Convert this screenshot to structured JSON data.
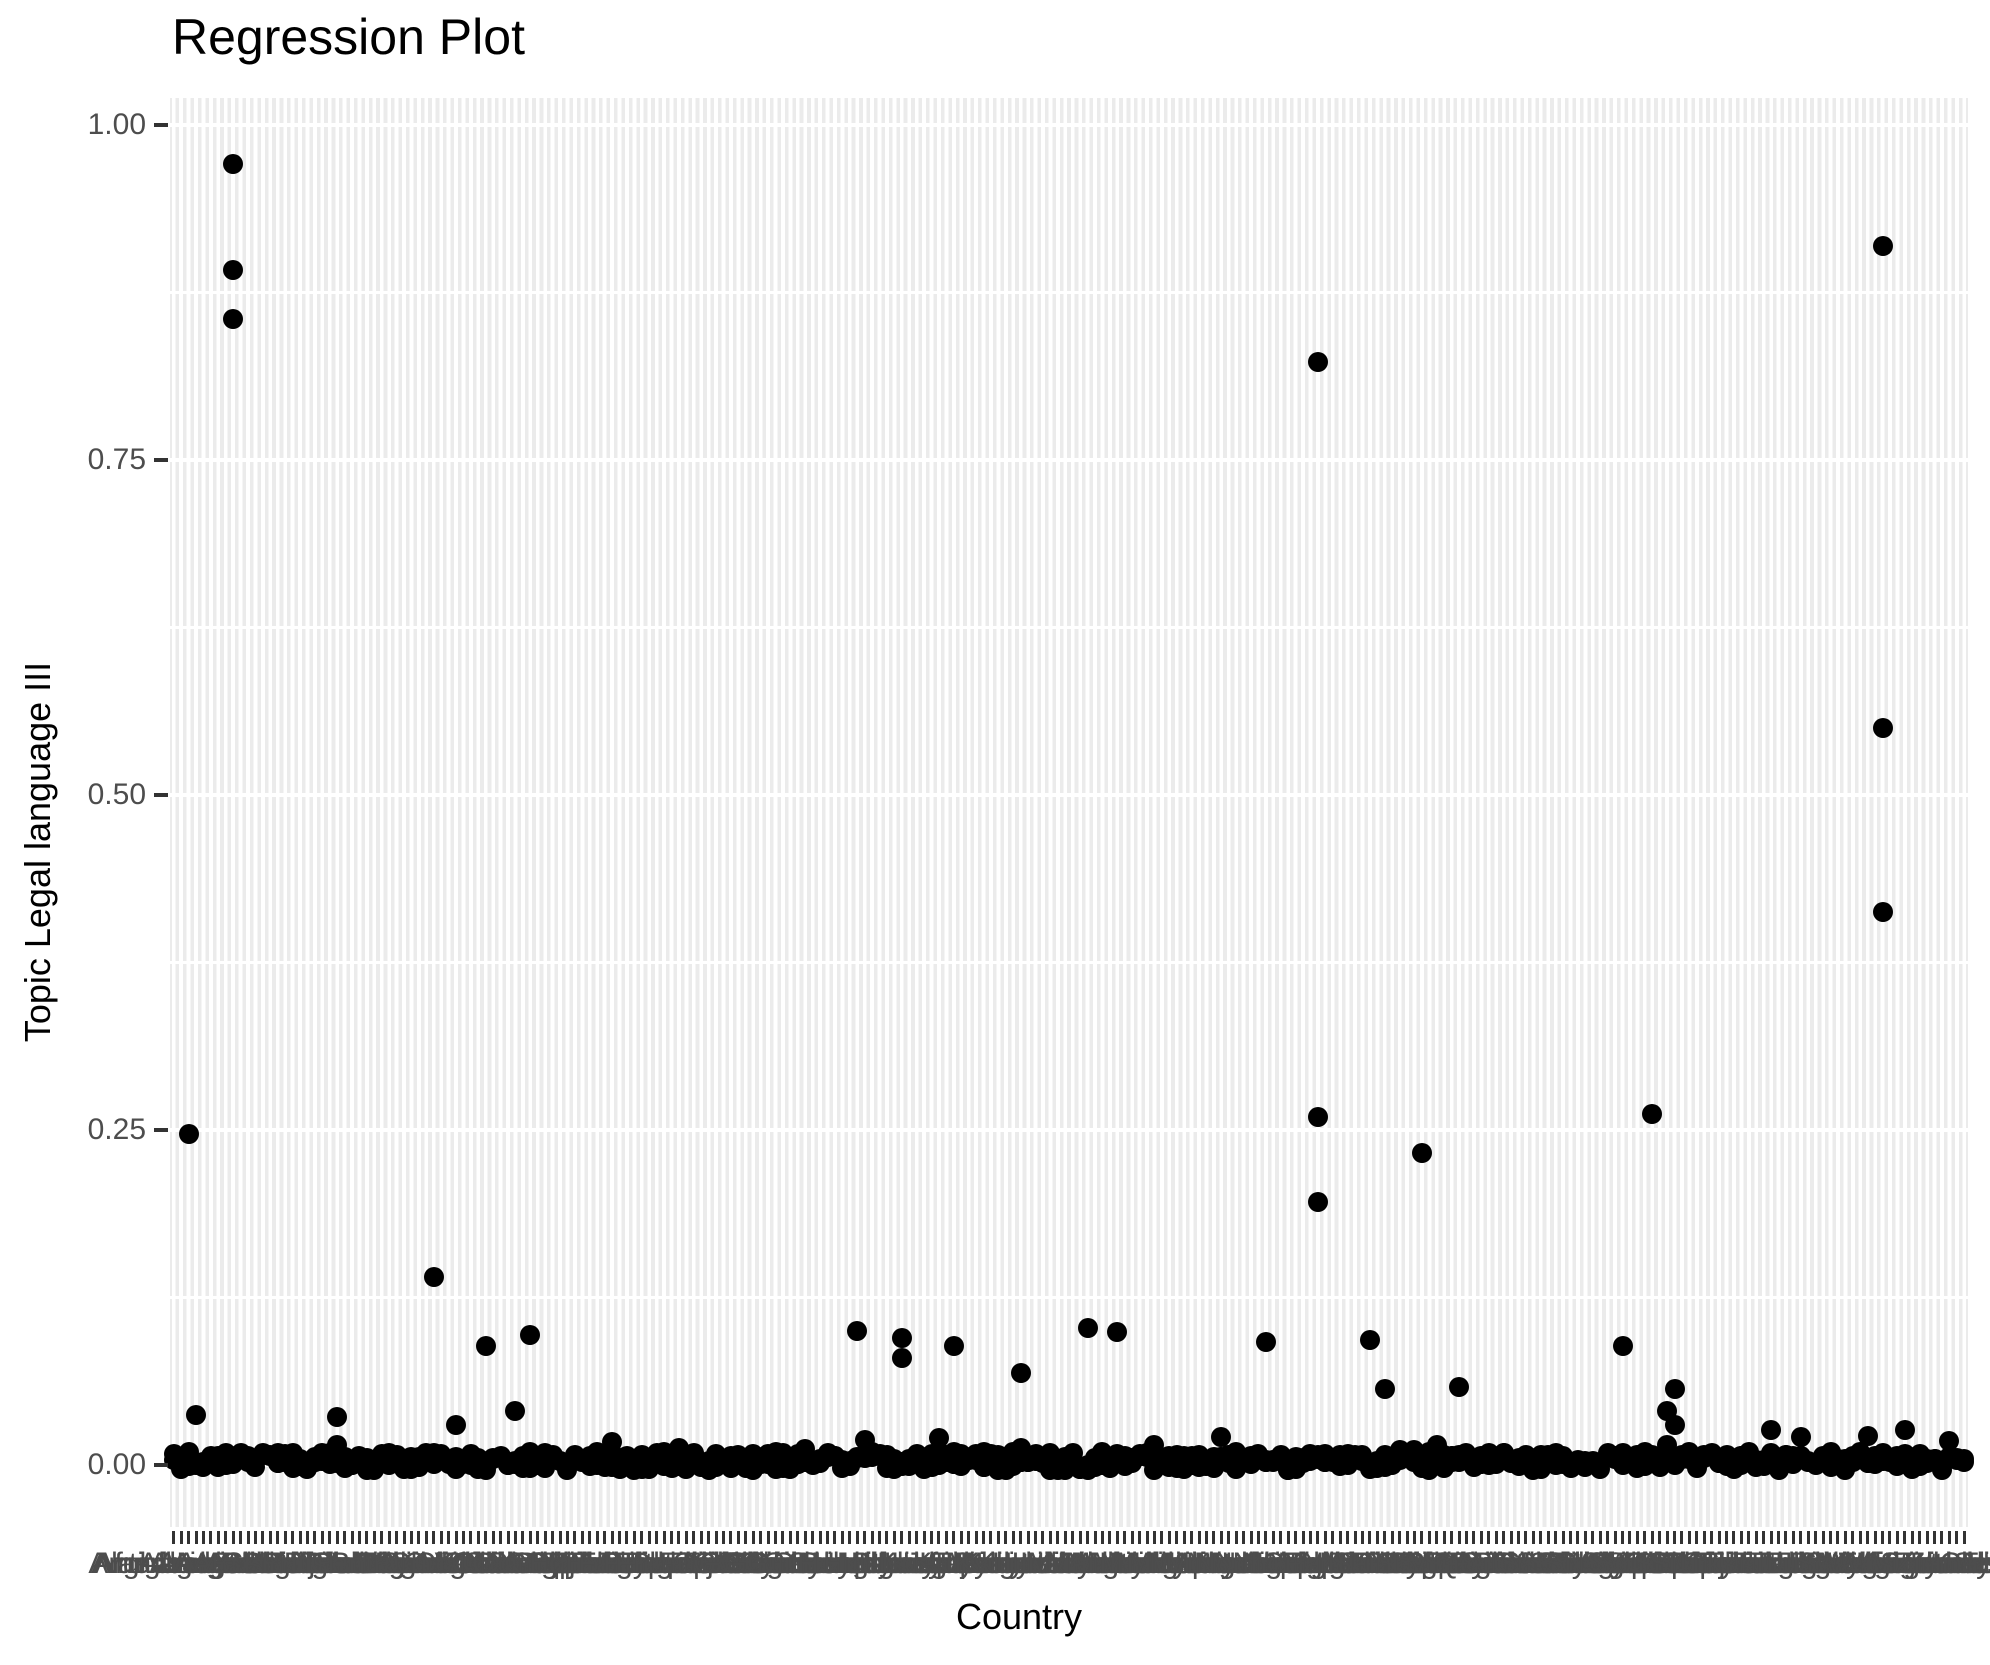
{
  "title": "Regression Plot",
  "axes": {
    "x_title": "Country",
    "y_title": "Topic Legal language III"
  },
  "colors": {
    "panel_background": "#EBEBEB",
    "gridline": "#FFFFFF",
    "point": "#000000",
    "tick_mark": "#333333",
    "tick_label": "#4D4D4D",
    "title_text": "#000000"
  },
  "chart_data": {
    "type": "scatter",
    "title": "Regression Plot",
    "xlabel": "Country",
    "ylabel": "Topic Legal language III",
    "y_axis": {
      "tick_values": [
        0.0,
        0.25,
        0.5,
        0.75,
        1.0
      ],
      "tick_labels": [
        "0.00",
        "0.25",
        "0.50",
        "0.75",
        "1.00"
      ],
      "minor_gridlines": [
        0.125,
        0.375,
        0.625,
        0.875
      ],
      "range_shown": [
        -0.046,
        1.02
      ]
    },
    "x_axis": {
      "note": "one tick per country; labels overlap into an illegible dark band, only 'Afg' of the first label is readable",
      "first_readable_label_fragment": "Afg",
      "categories": [
        "Afghanistan",
        "Aland Islands",
        "Albania",
        "Algeria",
        "American Samoa",
        "Andorra",
        "Angola",
        "Anguilla",
        "Antigua and Barbuda",
        "Argentina",
        "Armenia",
        "Aruba",
        "Australia",
        "Austria",
        "Azerbaijan",
        "Bahamas",
        "Bahrain",
        "Bangladesh",
        "Barbados",
        "Belarus",
        "Belgium",
        "Belize",
        "Benin",
        "Bermuda",
        "Bhutan",
        "Bolivia",
        "Bonaire",
        "Bosnia and Herzegovina",
        "Botswana",
        "Brazil",
        "British Virgin Islands",
        "Brunei",
        "Bulgaria",
        "Burkina Faso",
        "Burundi",
        "Cabo Verde",
        "Cambodia",
        "Cameroon",
        "Canada",
        "Cayman Islands",
        "Central African Republic",
        "Chad",
        "Chile",
        "China",
        "Christmas Island",
        "Cocos Islands",
        "Colombia",
        "Comoros",
        "Congo",
        "Cook Islands",
        "Costa Rica",
        "Croatia",
        "Cuba",
        "Curacao",
        "Cyprus",
        "Czechia",
        "Denmark",
        "Djibouti",
        "Dominica",
        "Dominican Republic",
        "DR Congo",
        "Ecuador",
        "Egypt",
        "El Salvador",
        "Equatorial Guinea",
        "Eritrea",
        "Estonia",
        "Eswatini",
        "Ethiopia",
        "Falkland Islands",
        "Faroe Islands",
        "Fiji",
        "Finland",
        "France",
        "French Guiana",
        "French Polynesia",
        "Gabon",
        "Gambia",
        "Georgia",
        "Germany",
        "Ghana",
        "Gibraltar",
        "Greece",
        "Greenland",
        "Grenada",
        "Guadeloupe",
        "Guam",
        "Guatemala",
        "Guernsey",
        "Guinea",
        "Guinea-Bissau",
        "Guyana",
        "Haiti",
        "Honduras",
        "Hong Kong",
        "Hungary",
        "Iceland",
        "India",
        "Indonesia",
        "Iran",
        "Iraq",
        "Ireland",
        "Isle of Man",
        "Israel",
        "Italy",
        "Ivory Coast",
        "Jamaica",
        "Japan",
        "Jersey",
        "Jordan",
        "Kazakhstan",
        "Kenya",
        "Kiribati",
        "Kosovo",
        "Kuwait",
        "Kyrgyzstan",
        "Laos",
        "Latvia",
        "Lebanon",
        "Lesotho",
        "Liberia",
        "Libya",
        "Liechtenstein",
        "Lithuania",
        "Luxembourg",
        "Macao",
        "Madagascar",
        "Malawi",
        "Malaysia",
        "Maldives",
        "Mali",
        "Malta",
        "Marshall Islands",
        "Martinique",
        "Mauritania",
        "Mauritius",
        "Mayotte",
        "Mexico",
        "Micronesia",
        "Moldova",
        "Monaco",
        "Mongolia",
        "Montenegro",
        "Montserrat",
        "Morocco",
        "Mozambique",
        "Myanmar",
        "Namibia",
        "Nauru",
        "Nepal",
        "Netherlands",
        "New Caledonia",
        "New Zealand",
        "Nicaragua",
        "Niger",
        "Nigeria",
        "Niue",
        "Norfolk Island",
        "North Korea",
        "North Macedonia",
        "Northern Mariana Islands",
        "Norway",
        "Oman",
        "Pakistan",
        "Palau",
        "Palestine",
        "Panama",
        "Papua New Guinea",
        "Paraguay",
        "Peru",
        "Philippines",
        "Pitcairn",
        "Poland",
        "Portugal",
        "Puerto Rico",
        "Qatar",
        "Reunion",
        "Romania",
        "Russia",
        "Rwanda",
        "Saint Barthelemy",
        "Saint Helena",
        "Saint Kitts and Nevis",
        "Saint Lucia",
        "Saint Martin",
        "Saint Pierre and Miquelon",
        "Saint Vincent and the Grenadines",
        "Samoa",
        "San Marino",
        "Sao Tome and Principe",
        "Saudi Arabia",
        "Senegal",
        "Serbia",
        "Seychelles",
        "Sierra Leone",
        "Singapore",
        "Sint Maarten",
        "Slovakia",
        "Slovenia",
        "Solomon Islands",
        "Somalia",
        "South Africa",
        "South Korea",
        "South Sudan",
        "Spain",
        "Sri Lanka",
        "Sudan",
        "Suriname",
        "Sweden",
        "Switzerland",
        "Syria",
        "Taiwan",
        "Tajikistan",
        "Tanzania",
        "Thailand",
        "Timor-Leste",
        "Togo",
        "Tokelau",
        "Tonga",
        "Trinidad and Tobago",
        "Tunisia",
        "Turkey",
        "Turkmenistan",
        "Turks and Caicos Islands",
        "Tuvalu",
        "Uganda",
        "Ukraine",
        "United Arab Emirates",
        "United Kingdom",
        "United States",
        "Uruguay",
        "US Virgin Islands",
        "Uzbekistan",
        "Vanuatu",
        "Vatican City",
        "Venezuela",
        "Vietnam",
        "Wallis and Futuna",
        "Western Sahara",
        "Yemen",
        "Zambia",
        "Zimbabwe"
      ]
    },
    "outlier_points": [
      [
        2,
        0.247
      ],
      [
        3,
        0.037
      ],
      [
        8,
        0.971
      ],
      [
        8,
        0.892
      ],
      [
        8,
        0.855
      ],
      [
        14,
        0.009
      ],
      [
        22,
        0.036
      ],
      [
        22,
        0.015
      ],
      [
        35,
        0.14
      ],
      [
        38,
        0.03
      ],
      [
        42,
        0.089
      ],
      [
        46,
        0.04
      ],
      [
        48,
        0.097
      ],
      [
        59,
        0.017
      ],
      [
        68,
        0.013
      ],
      [
        81,
        0.01
      ],
      [
        85,
        0.012
      ],
      [
        92,
        0.1
      ],
      [
        93,
        0.019
      ],
      [
        98,
        0.095
      ],
      [
        98,
        0.08
      ],
      [
        103,
        0.02
      ],
      [
        105,
        0.089
      ],
      [
        114,
        0.069
      ],
      [
        114,
        0.013
      ],
      [
        123,
        0.102
      ],
      [
        127,
        0.099
      ],
      [
        132,
        0.015
      ],
      [
        141,
        0.021
      ],
      [
        147,
        0.092
      ],
      [
        154,
        0.823
      ],
      [
        154,
        0.26
      ],
      [
        154,
        0.196
      ],
      [
        161,
        0.093
      ],
      [
        163,
        0.057
      ],
      [
        165,
        0.011
      ],
      [
        167,
        0.011
      ],
      [
        168,
        0.233
      ],
      [
        170,
        0.015
      ],
      [
        173,
        0.058
      ],
      [
        195,
        0.089
      ],
      [
        199,
        0.262
      ],
      [
        201,
        0.04
      ],
      [
        201,
        0.015
      ],
      [
        202,
        0.057
      ],
      [
        202,
        0.03
      ],
      [
        215,
        0.026
      ],
      [
        219,
        0.021
      ],
      [
        223,
        0.01
      ],
      [
        228,
        0.022
      ],
      [
        230,
        0.91
      ],
      [
        230,
        0.55
      ],
      [
        230,
        0.413
      ],
      [
        233,
        0.026
      ],
      [
        239,
        0.018
      ]
    ],
    "baseline_band": {
      "description": "dense mass of points at ~0 for every country forming a solid black band",
      "points_per_category": 2,
      "value_jitter_range": [
        -0.004,
        0.009
      ]
    }
  }
}
